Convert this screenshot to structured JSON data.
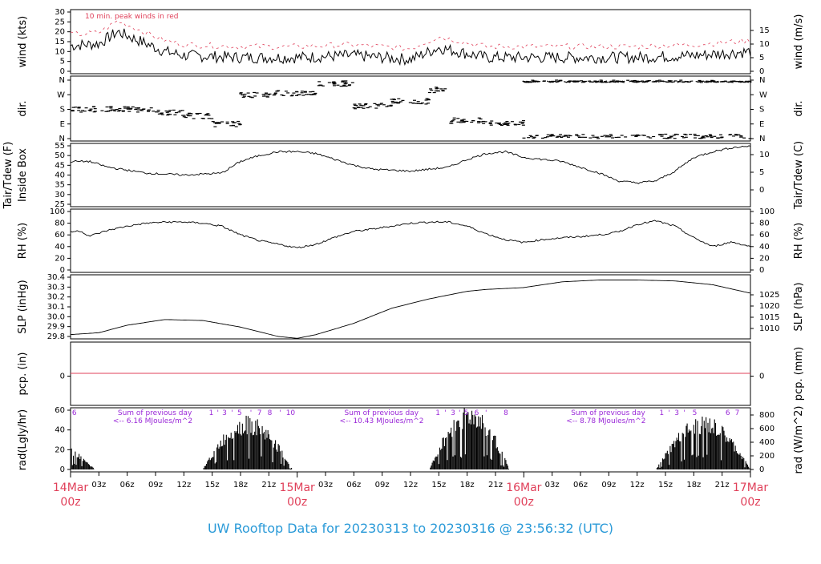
{
  "footer": "UW Rooftop Data for 20230313  to  20230316 @ 23:56:32  (UTC)",
  "colors": {
    "accent_pink": "#e0405a",
    "purple": "#9a28d8",
    "footer_blue": "#2a9ad8"
  },
  "chart_data": [
    {
      "type": "line",
      "left_label": "wind (kts)",
      "right_label": "wind (m/s)",
      "yticks_left": [
        "0",
        "5",
        "10",
        "15",
        "20",
        "25",
        "30"
      ],
      "ylim": [
        0,
        30
      ],
      "yticks_right": [
        "0",
        "5",
        "10",
        "15"
      ],
      "annotation": "10 min. peak winds in red",
      "series": [
        {
          "x": [
            0,
            3,
            5,
            8,
            10,
            12,
            18,
            24,
            30,
            36,
            39,
            44,
            48,
            54,
            60,
            66,
            72
          ],
          "y": [
            13,
            14,
            20,
            14,
            10,
            8,
            7,
            7,
            8,
            6,
            12,
            7,
            7,
            7,
            7,
            8,
            10
          ]
        }
      ]
    },
    {
      "type": "scatter",
      "left_label": "dir.",
      "right_label": "dir.",
      "yticks_left": [
        "N",
        "E",
        "S",
        "W",
        "N"
      ],
      "yticks_right": [
        "N",
        "E",
        "S",
        "W",
        "N"
      ]
    },
    {
      "type": "line",
      "left_label": "Inside Box",
      "left_label2": "Tair/Tdew (F)",
      "right_label": "Tair/Tdew (C)",
      "yticks_left": [
        "25",
        "30",
        "35",
        "40",
        "45",
        "50",
        "55"
      ],
      "ylim": [
        25,
        55
      ],
      "yticks_right": [
        "0",
        "5",
        "10"
      ],
      "series": [
        {
          "x": [
            0,
            2,
            4,
            8,
            12,
            16,
            18,
            20,
            22,
            24,
            26,
            28,
            30,
            32,
            36,
            40,
            42,
            44,
            46,
            48,
            50,
            52,
            54,
            56,
            58,
            60,
            62,
            64,
            66,
            68,
            70,
            72
          ],
          "y": [
            47,
            47,
            44,
            41,
            40,
            41,
            47,
            50,
            52,
            52,
            51,
            48,
            45,
            43,
            42,
            44,
            48,
            51,
            52,
            49,
            48,
            47,
            44,
            41,
            37,
            36,
            37,
            42,
            49,
            52,
            54,
            55
          ]
        }
      ]
    },
    {
      "type": "line",
      "left_label": "RH (%)",
      "right_label": "RH (%)",
      "yticks_left": [
        "0",
        "20",
        "40",
        "60",
        "80",
        "100"
      ],
      "ylim": [
        0,
        100
      ],
      "yticks_right": [
        "0",
        "20",
        "40",
        "60",
        "80",
        "100"
      ],
      "series": [
        {
          "x": [
            0,
            1,
            2,
            4,
            6,
            8,
            10,
            12,
            14,
            16,
            18,
            20,
            22,
            24,
            26,
            28,
            30,
            32,
            34,
            36,
            38,
            40,
            42,
            44,
            46,
            48,
            50,
            52,
            54,
            56,
            58,
            60,
            62,
            64,
            66,
            68,
            70,
            72
          ],
          "y": [
            65,
            67,
            58,
            68,
            75,
            80,
            82,
            82,
            80,
            75,
            60,
            50,
            44,
            38,
            44,
            56,
            66,
            70,
            75,
            80,
            82,
            82,
            75,
            62,
            52,
            47,
            52,
            55,
            57,
            60,
            65,
            78,
            84,
            75,
            55,
            40,
            48,
            40
          ]
        }
      ]
    },
    {
      "type": "line",
      "left_label": "SLP (inHg)",
      "right_label": "SLP (hPa)",
      "yticks_left": [
        "29.8",
        "29.9",
        "30.0",
        "30.1",
        "30.2",
        "30.3",
        "30.4"
      ],
      "ylim": [
        29.78,
        30.41
      ],
      "yticks_right": [
        "1010",
        "1015",
        "1020",
        "1025"
      ],
      "series": [
        {
          "x": [
            0,
            3,
            6,
            10,
            14,
            18,
            22,
            24,
            26,
            30,
            34,
            38,
            40,
            42,
            44,
            48,
            52,
            56,
            60,
            64,
            68,
            72
          ],
          "y": [
            29.8,
            29.82,
            29.9,
            29.96,
            29.95,
            29.88,
            29.78,
            29.76,
            29.8,
            29.92,
            30.08,
            30.18,
            30.22,
            30.26,
            30.28,
            30.3,
            30.36,
            30.38,
            30.38,
            30.37,
            30.33,
            30.24
          ]
        }
      ]
    },
    {
      "type": "line",
      "left_label": "pcp. (in)",
      "right_label": "pcp. (mm)",
      "yticks_left": [
        "0"
      ],
      "yticks_right": [
        "0"
      ],
      "series": [
        {
          "x": [
            0,
            72
          ],
          "y": [
            0,
            0
          ]
        }
      ]
    },
    {
      "type": "area",
      "left_label": "rad(Lgly/hr)",
      "right_label": "rad (W/m^2)",
      "yticks_left": [
        "0",
        "20",
        "40",
        "60"
      ],
      "ylim": [
        0,
        75
      ],
      "yticks_right": [
        "0",
        "200",
        "400",
        "600",
        "800"
      ],
      "annotations": [
        {
          "line1": "Sum of previous day",
          "line2": "<-- 6.16 MJoules/m^2"
        },
        {
          "line1": "Sum of previous day",
          "line2": "<-- 10.43 MJoules/m^2"
        },
        {
          "line1": "Sum of previous day",
          "line2": "<-- 8.78 MJoules/m^2"
        }
      ],
      "top_marks": [
        {
          "x": 0.4,
          "t": "6"
        },
        {
          "x": 14.9,
          "t": "1"
        },
        {
          "x": 15.6,
          "t": "'"
        },
        {
          "x": 16.3,
          "t": "3"
        },
        {
          "x": 17.1,
          "t": "'"
        },
        {
          "x": 17.9,
          "t": "5"
        },
        {
          "x": 19.1,
          "t": "'"
        },
        {
          "x": 20,
          "t": "7"
        },
        {
          "x": 21.1,
          "t": "8"
        },
        {
          "x": 22.2,
          "t": "'"
        },
        {
          "x": 23.3,
          "t": "10"
        },
        {
          "x": 38.9,
          "t": "1"
        },
        {
          "x": 39.7,
          "t": "'"
        },
        {
          "x": 40.5,
          "t": "3"
        },
        {
          "x": 41.2,
          "t": "'"
        },
        {
          "x": 41.9,
          "t": "5"
        },
        {
          "x": 43,
          "t": "6"
        },
        {
          "x": 44,
          "t": "'"
        },
        {
          "x": 46.1,
          "t": "8"
        },
        {
          "x": 62.6,
          "t": "1"
        },
        {
          "x": 63.4,
          "t": "'"
        },
        {
          "x": 64.2,
          "t": "3"
        },
        {
          "x": 65,
          "t": "'"
        },
        {
          "x": 66.1,
          "t": "5"
        },
        {
          "x": 69.6,
          "t": "6"
        },
        {
          "x": 70.6,
          "t": "7"
        }
      ]
    }
  ],
  "xaxis": {
    "hour_ticks": [
      "03z",
      "06z",
      "09z",
      "12z",
      "15z",
      "18z",
      "21z",
      "03z",
      "06z",
      "09z",
      "12z",
      "15z",
      "18z",
      "21z",
      "03z",
      "06z",
      "09z",
      "12z",
      "15z",
      "18z",
      "21z"
    ],
    "day_ticks": [
      {
        "line1": "14Mar",
        "line2": "00z"
      },
      {
        "line1": "15Mar",
        "line2": "00z"
      },
      {
        "line1": "16Mar",
        "line2": "00z"
      },
      {
        "line1": "17Mar",
        "line2": "00z"
      }
    ]
  }
}
